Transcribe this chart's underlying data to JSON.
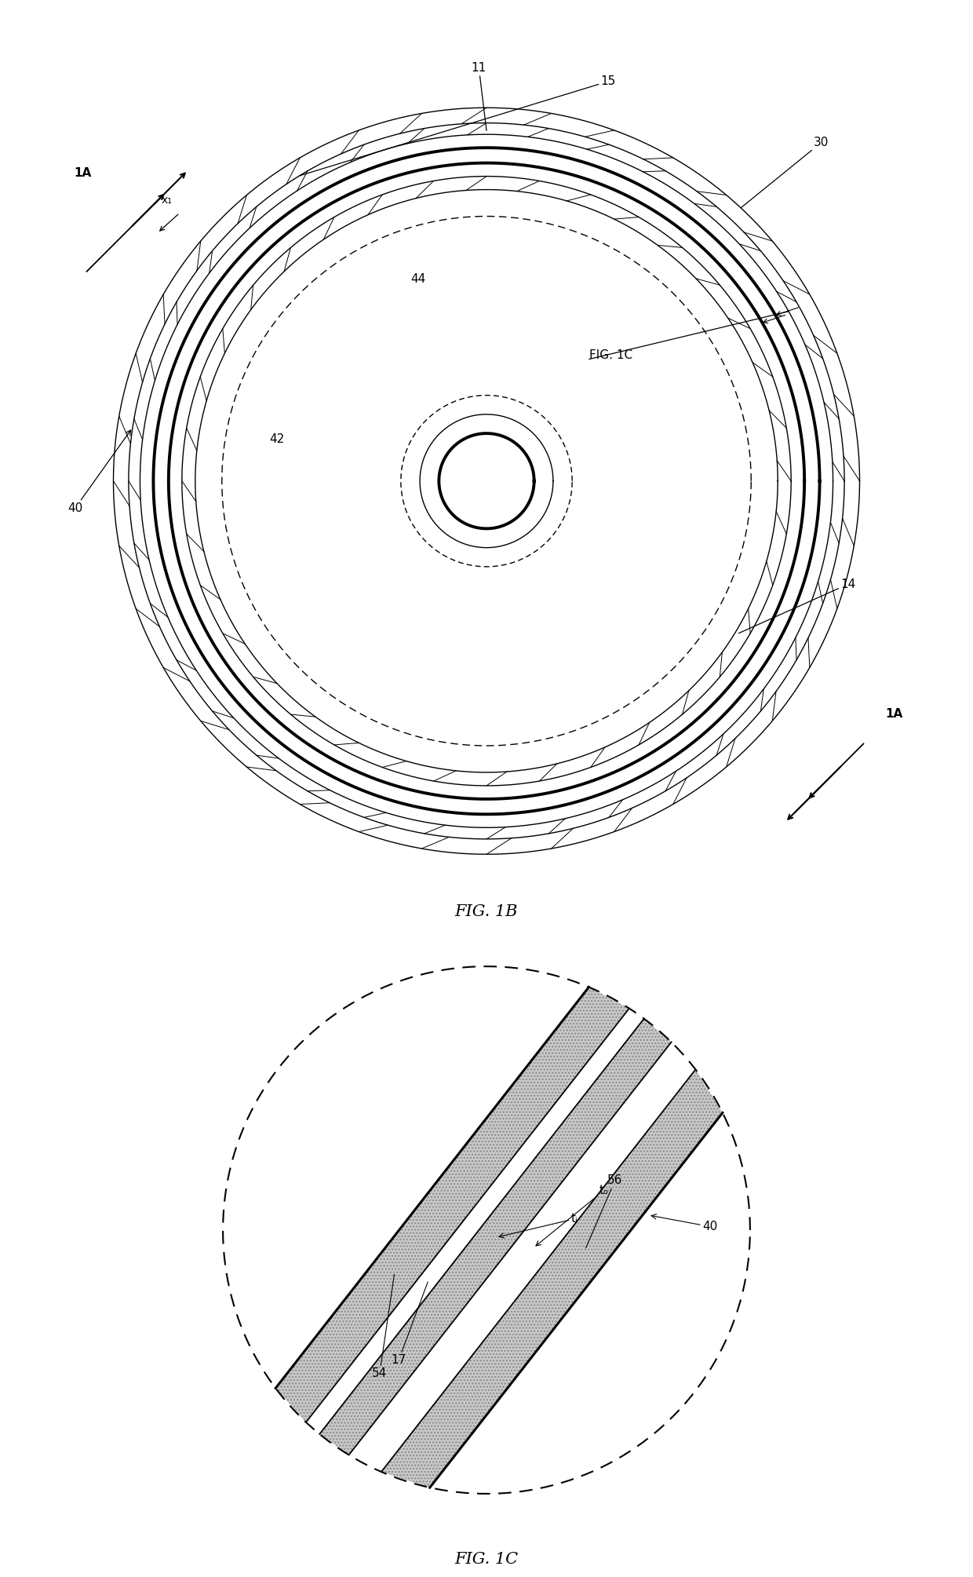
{
  "bg_color": "#ffffff",
  "line_color": "#000000",
  "fig_width": 12.4,
  "fig_height": 20.09,
  "fig1b": {
    "title": "FIG. 1B",
    "label_11": "11",
    "label_15": "15",
    "label_30": "30",
    "label_44": "44",
    "label_42": "42",
    "label_40": "40",
    "label_14": "14",
    "label_1A": "1A",
    "label_x1": "x₁",
    "label_figc": "FIG. 1C"
  },
  "fig1c": {
    "title": "FIG. 1C",
    "label_56": "56",
    "label_to": "tₒ",
    "label_ti": "tᵢ",
    "label_40": "40",
    "label_17": "17",
    "label_54": "54"
  }
}
